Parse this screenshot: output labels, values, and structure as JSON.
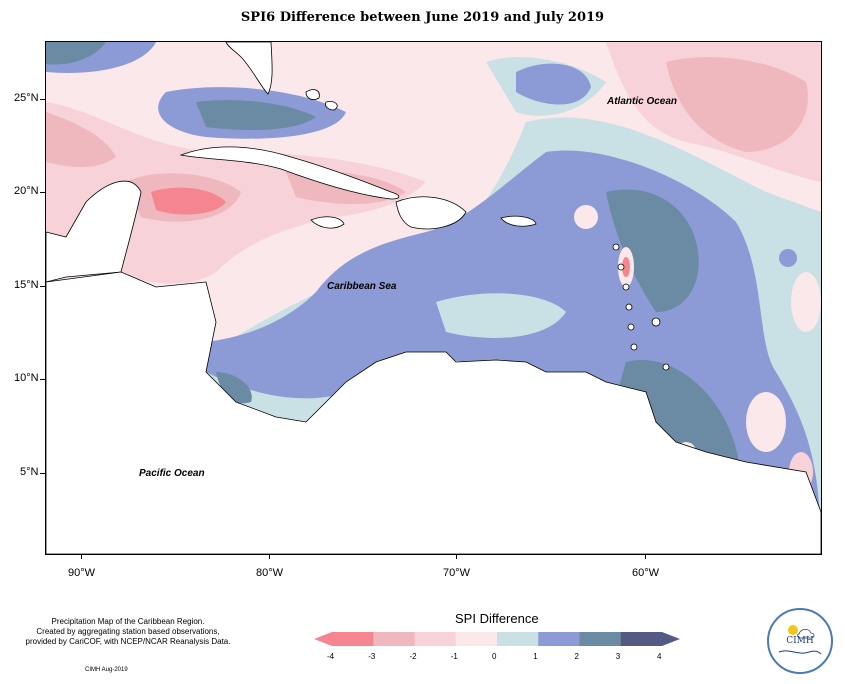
{
  "title": "SPI6 Difference between June 2019 and July 2019",
  "map": {
    "lat_labels": [
      "25°N",
      "20°N",
      "15°N",
      "10°N",
      "5°N"
    ],
    "lon_labels": [
      "90°W",
      "80°W",
      "70°W",
      "60°W"
    ],
    "places": {
      "atlantic": "Atlantic Ocean",
      "caribbean": "Caribbean Sea",
      "pacific": "Pacific Ocean"
    }
  },
  "credit": {
    "line1": "Precipitation Map of the Caribbean Region.",
    "line2": "Created by aggregating station based observations,",
    "line3": "provided by CariCOF, with NCEP/NCAR Reanalysis Data.",
    "date": "CIMH Aug-2019"
  },
  "legend": {
    "title": "SPI Difference",
    "ticks": [
      "-4",
      "-3",
      "-2",
      "-1",
      "0",
      "1",
      "2",
      "3",
      "4"
    ],
    "colors": [
      "#f5858f",
      "#efb8be",
      "#f7d2d8",
      "#fbe8ea",
      "#c9e0e4",
      "#8c9ad6",
      "#6b8aa3",
      "#545a86"
    ]
  },
  "logo": {
    "text": "CIMH"
  }
}
